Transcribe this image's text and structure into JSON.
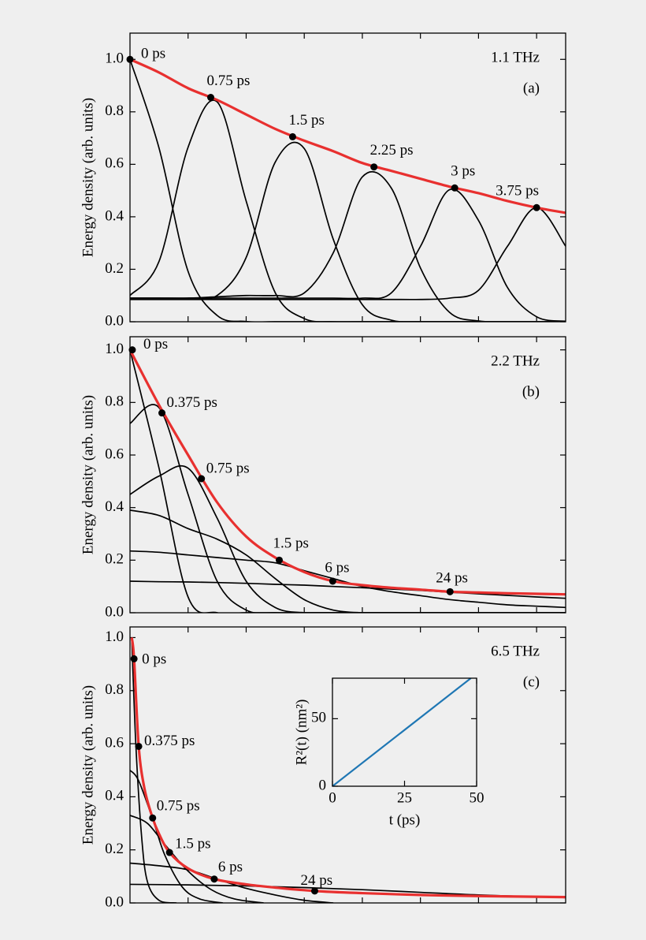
{
  "chart_data": [
    {
      "type": "line",
      "ylabel": "Energy density (arb. units)",
      "annotation": "1.1 THz",
      "panel_label": "(a)",
      "xlim": [
        0,
        7.5
      ],
      "xticks": [
        1,
        2,
        3,
        4,
        5,
        6,
        7
      ],
      "ylim": [
        0,
        1.1
      ],
      "yticks": [
        {
          "value": 0,
          "label": "0.0"
        },
        0.2,
        0.4,
        0.6,
        0.8,
        {
          "value": 1,
          "label": "1.0"
        }
      ],
      "x": [
        0,
        0.5,
        1,
        1.5,
        2,
        2.5,
        3,
        3.5,
        4,
        4.5,
        5,
        5.5,
        6,
        6.5,
        7,
        7.5
      ],
      "series": [
        {
          "color": "#000000",
          "values": [
            1.0,
            0.662,
            0.192,
            0.024,
            0.001,
            0,
            0,
            0,
            0,
            0,
            0,
            0,
            0,
            0,
            0,
            0
          ]
        },
        {
          "color": "#000000",
          "values": [
            0.1,
            0.23,
            0.665,
            0.838,
            0.46,
            0.111,
            0.012,
            0,
            0,
            0,
            0,
            0,
            0,
            0,
            0,
            0
          ]
        },
        {
          "color": "#000000",
          "values": [
            0.09,
            0.09,
            0.09,
            0.1,
            0.245,
            0.608,
            0.66,
            0.314,
            0.065,
            0.006,
            0,
            0,
            0,
            0,
            0,
            0
          ]
        },
        {
          "color": "#000000",
          "values": [
            0.09,
            0.09,
            0.09,
            0.095,
            0.1,
            0.1,
            0.11,
            0.263,
            0.552,
            0.509,
            0.205,
            0.036,
            0.003,
            0,
            0,
            0
          ]
        },
        {
          "color": "#000000",
          "values": [
            0.09,
            0.09,
            0.09,
            0.09,
            0.09,
            0.09,
            0.09,
            0.09,
            0.09,
            0.11,
            0.287,
            0.503,
            0.386,
            0.13,
            0.019,
            0.002
          ]
        },
        {
          "color": "#000000",
          "values": [
            0.085,
            0.085,
            0.085,
            0.085,
            0.085,
            0.085,
            0.085,
            0.085,
            0.085,
            0.085,
            0.085,
            0.09,
            0.12,
            0.288,
            0.435,
            0.288
          ]
        },
        {
          "color": "#e8302f",
          "values": [
            1.0,
            0.95,
            0.89,
            0.845,
            0.79,
            0.735,
            0.69,
            0.65,
            0.605,
            0.575,
            0.545,
            0.515,
            0.49,
            0.46,
            0.435,
            0.415
          ]
        }
      ],
      "points": {
        "x": [
          0,
          1.39,
          2.8,
          4.2,
          5.59,
          7.0
        ],
        "values": [
          1.0,
          0.855,
          0.705,
          0.59,
          0.51,
          0.435
        ],
        "labels": [
          "0 ps",
          "0.75 ps",
          "1.5 ps",
          "2.25 ps",
          "3 ps",
          "3.75 ps"
        ]
      }
    },
    {
      "type": "line",
      "ylabel": "Energy density (arb. units)",
      "annotation": "2.2 THz",
      "panel_label": "(b)",
      "xlim": [
        0,
        7.5
      ],
      "xticks": [
        1,
        2,
        3,
        4,
        5,
        6,
        7
      ],
      "ylim": [
        0,
        1.05
      ],
      "yticks": [
        {
          "value": 0,
          "label": "0.0"
        },
        0.2,
        0.4,
        0.6,
        0.8,
        {
          "value": 1,
          "label": "1.0"
        }
      ],
      "x": [
        0,
        0.5,
        1,
        1.5,
        2,
        2.5,
        3,
        3.5,
        4,
        4.5,
        5,
        5.5,
        6,
        6.5,
        7,
        7.5
      ],
      "series": [
        {
          "color": "#000000",
          "values": [
            1.0,
            0.55,
            0.06,
            0,
            0,
            0,
            0,
            0,
            0,
            0,
            0,
            0,
            0,
            0,
            0,
            0
          ]
        },
        {
          "color": "#000000",
          "values": [
            0.72,
            0.78,
            0.45,
            0.12,
            0.01,
            0,
            0,
            0,
            0,
            0,
            0,
            0,
            0,
            0,
            0,
            0
          ]
        },
        {
          "color": "#000000",
          "values": [
            0.45,
            0.52,
            0.55,
            0.36,
            0.12,
            0.02,
            0,
            0,
            0,
            0,
            0,
            0,
            0,
            0,
            0,
            0
          ]
        },
        {
          "color": "#000000",
          "values": [
            0.39,
            0.37,
            0.32,
            0.28,
            0.22,
            0.13,
            0.05,
            0.01,
            0,
            0,
            0,
            0,
            0,
            0,
            0,
            0
          ]
        },
        {
          "color": "#000000",
          "values": [
            0.235,
            0.23,
            0.22,
            0.21,
            0.2,
            0.19,
            0.16,
            0.13,
            0.1,
            0.08,
            0.065,
            0.05,
            0.04,
            0.03,
            0.025,
            0.02
          ]
        },
        {
          "color": "#000000",
          "values": [
            0.12,
            0.118,
            0.117,
            0.115,
            0.112,
            0.108,
            0.105,
            0.1,
            0.095,
            0.09,
            0.085,
            0.078,
            0.072,
            0.066,
            0.06,
            0.055
          ]
        },
        {
          "color": "#e8302f",
          "values": [
            1.0,
            0.79,
            0.6,
            0.42,
            0.29,
            0.21,
            0.155,
            0.12,
            0.105,
            0.095,
            0.088,
            0.08,
            0.077,
            0.074,
            0.072,
            0.07
          ]
        }
      ],
      "points": {
        "x": [
          0.04,
          0.55,
          1.23,
          2.57,
          3.49,
          5.51
        ],
        "values": [
          1.0,
          0.76,
          0.51,
          0.2,
          0.12,
          0.08
        ],
        "labels": [
          "0 ps",
          "0.375 ps",
          "0.75 ps",
          "1.5 ps",
          "6 ps",
          "24 ps"
        ]
      }
    },
    {
      "type": "line",
      "ylabel": "Energy density (arb. units)",
      "annotation": "6.5 THz",
      "panel_label": "(c)",
      "xlim": [
        0,
        7.5
      ],
      "xticks": [
        1,
        2,
        3,
        4,
        5,
        6,
        7
      ],
      "ylim": [
        0,
        1.04
      ],
      "yticks": [
        {
          "value": 0,
          "label": "0.0"
        },
        0.2,
        0.4,
        0.6,
        0.8,
        {
          "value": 1,
          "label": "1.0"
        }
      ],
      "series": [
        {
          "color": "#000000",
          "x": [
            0.03,
            0.1,
            0.2,
            0.3,
            0.5,
            0.8
          ],
          "values": [
            1.0,
            0.6,
            0.25,
            0.08,
            0.01,
            0
          ]
        },
        {
          "color": "#000000",
          "x": [
            0,
            0.15,
            0.4,
            0.6,
            0.9,
            1.2,
            1.6
          ],
          "values": [
            0.5,
            0.46,
            0.31,
            0.18,
            0.06,
            0.015,
            0
          ]
        },
        {
          "color": "#000000",
          "x": [
            0,
            0.3,
            0.6,
            1.0,
            1.4,
            1.8,
            2.3
          ],
          "values": [
            0.33,
            0.3,
            0.22,
            0.12,
            0.05,
            0.015,
            0
          ]
        },
        {
          "color": "#000000",
          "x": [
            0,
            0.5,
            1.0,
            1.5,
            2,
            2.5,
            3,
            3.5
          ],
          "values": [
            0.15,
            0.14,
            0.125,
            0.09,
            0.055,
            0.03,
            0.01,
            0
          ]
        },
        {
          "color": "#000000",
          "x": [
            0,
            1,
            2,
            3,
            4,
            5,
            6,
            7.5
          ],
          "values": [
            0.07,
            0.068,
            0.064,
            0.058,
            0.05,
            0.04,
            0.03,
            0.02
          ]
        },
        {
          "color": "#e8302f",
          "x": [
            0.03,
            0.07,
            0.15,
            0.25,
            0.39,
            0.5,
            0.68,
            1.0,
            1.45,
            2,
            2.5,
            3.18,
            4,
            5,
            6,
            7.5
          ],
          "values": [
            1.0,
            0.92,
            0.59,
            0.43,
            0.32,
            0.26,
            0.19,
            0.13,
            0.09,
            0.07,
            0.058,
            0.045,
            0.037,
            0.03,
            0.026,
            0.022
          ]
        }
      ],
      "points": {
        "x": [
          0.07,
          0.15,
          0.39,
          0.68,
          1.45,
          3.18
        ],
        "values": [
          0.92,
          0.59,
          0.32,
          0.19,
          0.09,
          0.045
        ],
        "labels": [
          "0 ps",
          "0.375 ps",
          "0.75 ps",
          "1.5 ps",
          "6 ps",
          "24 ps"
        ]
      }
    },
    {
      "type": "line",
      "xlabel": "t (ps)",
      "ylabel": "R²(t) (nm²)",
      "xlim": [
        0,
        50
      ],
      "xticks": [
        0,
        25,
        50
      ],
      "ylim": [
        0,
        80
      ],
      "yticks": [
        0,
        50
      ],
      "series": [
        {
          "color": "#1f77b4",
          "x": [
            0,
            48
          ],
          "values": [
            0,
            80
          ]
        }
      ]
    }
  ]
}
